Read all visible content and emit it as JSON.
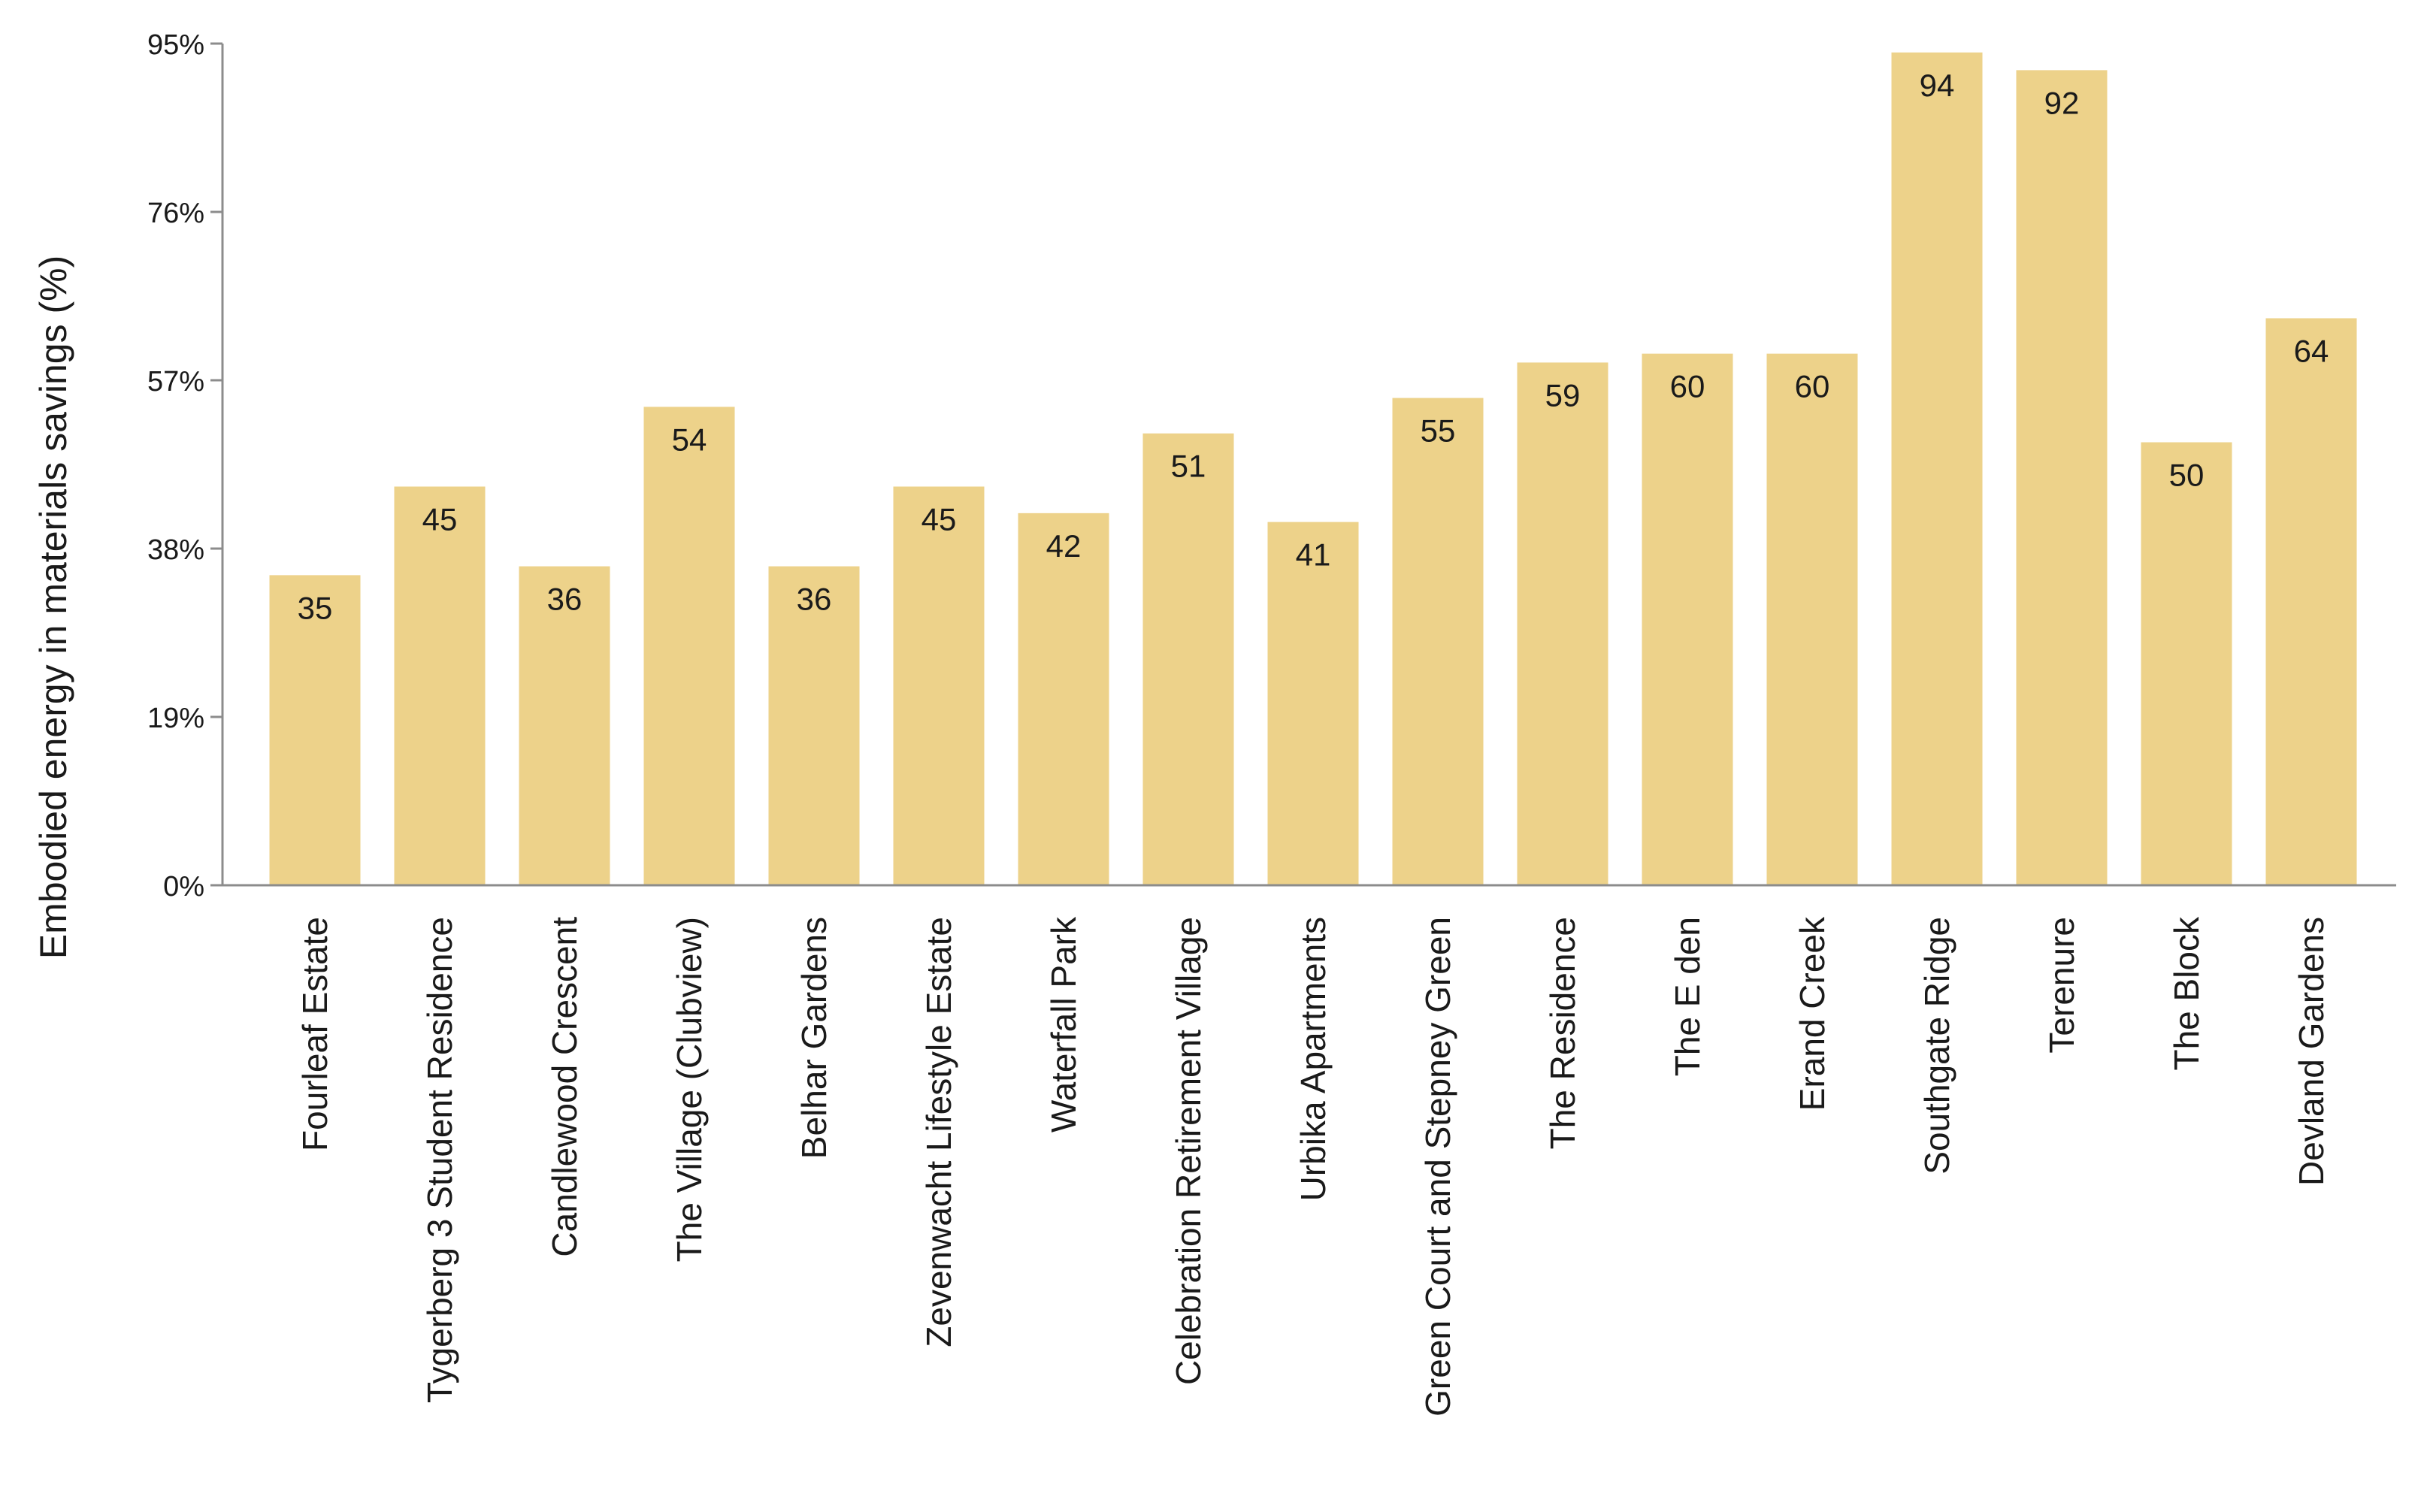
{
  "chart_data": {
    "type": "bar",
    "title": "",
    "xlabel": "",
    "ylabel": "Embodied energy in materials savings (%)",
    "categories": [
      "Fourleaf Estate",
      "Tygerberg 3 Student Residence",
      "Candlewood Crescent",
      "The Village (Clubview)",
      "Belhar Gardens",
      "Zevenwacht Lifestyle Estate",
      "Waterfall Park",
      "Celebration Retirement Village",
      "Urbika Apartments",
      "Green Court and Stepney Green",
      "The Residence",
      "The E den",
      "Erand Creek",
      "Southgate Ridge",
      "Terenure",
      "The Block",
      "Devland Gardens"
    ],
    "values": [
      35,
      45,
      36,
      54,
      36,
      45,
      42,
      51,
      41,
      55,
      59,
      60,
      60,
      94,
      92,
      50,
      64
    ],
    "data_labels": [
      "35",
      "45",
      "36",
      "54",
      "36",
      "45",
      "42",
      "51",
      "41",
      "55",
      "59",
      "60",
      "60",
      "94",
      "92",
      "50",
      "64"
    ],
    "ylim": [
      0,
      95
    ],
    "yticks": [
      0,
      19,
      38,
      57,
      76,
      95
    ],
    "ytick_labels": [
      "0%",
      "19%",
      "38%",
      "57%",
      "76%",
      "95%"
    ],
    "grid": false,
    "legend": "none",
    "colors": {
      "bar": "#EDD28A",
      "axis": "#8C8C8C",
      "text": "#1A1A1A"
    }
  }
}
